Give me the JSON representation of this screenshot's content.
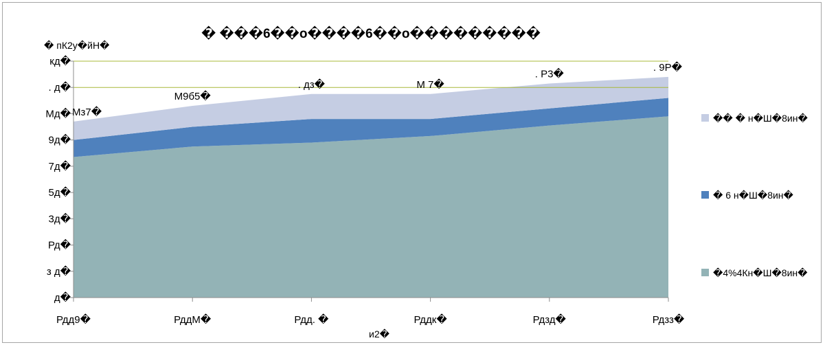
{
  "chart_data": {
    "type": "area",
    "stacked": true,
    "title": "� ���6��o����6��o���������",
    "ylabel": "� пК2у�йН�",
    "xlabel": "и2�",
    "categories": [
      "Рдд9�",
      "РддМ�",
      "Рдд. �",
      "Рддк�",
      "Рдзд�",
      "Рдзз�"
    ],
    "yticks": [
      "д�",
      "з д�",
      "Рд�",
      "3д�",
      "5д�",
      "7д�",
      "9д�",
      "Мд�",
      ". д�",
      "кд�"
    ],
    "ylim": [
      0,
      9
    ],
    "grid": "major-y",
    "gridlines_at": [
      8,
      9
    ],
    "legend_position": "right",
    "series": [
      {
        "name": "�4%4Кн�Ш�8ин�",
        "color": "#93b3b6",
        "values": [
          5.35,
          5.75,
          5.9,
          6.15,
          6.55,
          6.9
        ]
      },
      {
        "name": "� 6 н�Ш�8ин�",
        "color": "#4f81bd",
        "values": [
          0.65,
          0.75,
          0.9,
          0.65,
          0.65,
          0.7
        ]
      },
      {
        "name": "�� � н�Ш�8ин�",
        "color": "#c5cde3",
        "values": [
          0.7,
          0.8,
          0.95,
          0.95,
          0.95,
          0.8
        ]
      }
    ],
    "totals": [
      6.7,
      7.3,
      7.75,
      7.75,
      8.15,
      8.4
    ],
    "total_labels": [
      "Мз7�",
      "М9б5�",
      ". дз�",
      "М 7�",
      ". Р3�",
      ". 9Р�"
    ]
  }
}
